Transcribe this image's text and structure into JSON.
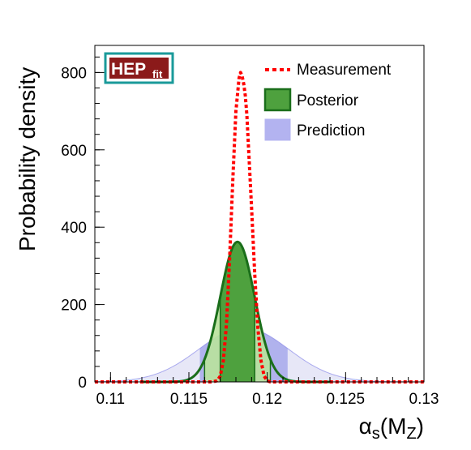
{
  "chart_data": {
    "type": "area",
    "title": "",
    "xlabel": "αs(MZ)",
    "xlabel_parts": {
      "symbol": "α",
      "sub1": "s",
      "open": "(M",
      "sub2": "Z",
      "close": ")"
    },
    "ylabel": "Probability density",
    "xlim": [
      0.109,
      0.13
    ],
    "ylim": [
      0,
      870
    ],
    "xticks": [
      0.11,
      0.115,
      0.12,
      0.125,
      0.13
    ],
    "xtick_labels": [
      "0.11",
      "0.115",
      "0.12",
      "0.125",
      "0.13"
    ],
    "yticks": [
      0,
      200,
      400,
      600,
      800
    ],
    "ytick_labels": [
      "0",
      "200",
      "400",
      "600",
      "800"
    ],
    "grid": false,
    "legend_position": "top-right",
    "logo": {
      "main": "HEP",
      "sub": "fit"
    },
    "series": [
      {
        "name": "Measurement",
        "style": "dotted-line",
        "color": "#ff0000",
        "x": [
          0.109,
          0.1165,
          0.1168,
          0.117,
          0.1172,
          0.1174,
          0.1176,
          0.1178,
          0.118,
          0.1182,
          0.1183,
          0.1184,
          0.1185,
          0.1186,
          0.1187,
          0.1188,
          0.119,
          0.1192,
          0.1194,
          0.1196,
          0.1198,
          0.12,
          0.1202,
          0.1205,
          0.13
        ],
        "values": [
          0,
          0,
          3,
          15,
          55,
          150,
          320,
          520,
          700,
          785,
          800,
          790,
          770,
          740,
          690,
          610,
          450,
          280,
          140,
          55,
          15,
          3,
          0,
          0,
          0
        ]
      },
      {
        "name": "Posterior",
        "style": "filled",
        "color": "#1a6e1a",
        "fill_inner": "#4ea13e",
        "fill_outer": "#b9e29b",
        "mean": 0.1181,
        "sigma": 0.0011,
        "peak": 362,
        "band_68": [
          0.117,
          0.1192
        ],
        "band_95": [
          0.116,
          0.1202
        ]
      },
      {
        "name": "Prediction",
        "style": "filled",
        "color": "#8a8ae8",
        "fill_inner": "#9ea0ea",
        "fill_outer": "#e3e3f6",
        "mean": 0.1185,
        "sigma": 0.00285,
        "peak": 140,
        "band_68": [
          0.1157,
          0.1213
        ],
        "band_95": [
          0.113,
          0.124
        ]
      }
    ]
  }
}
